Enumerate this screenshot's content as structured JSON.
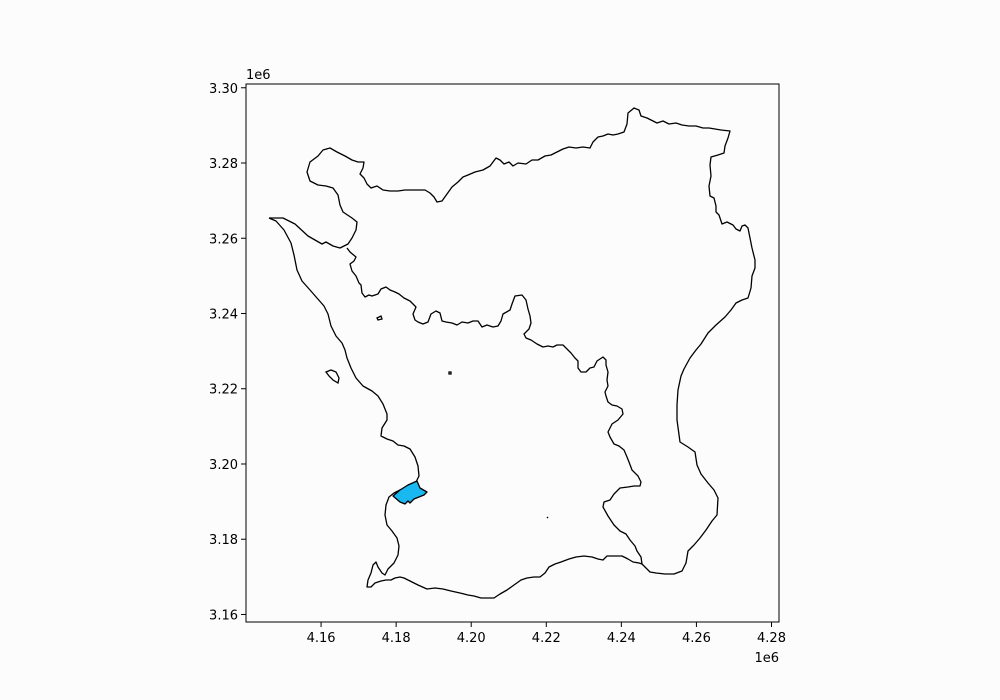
{
  "chart_data": {
    "type": "map",
    "title": "",
    "xlabel": "",
    "ylabel": "",
    "x_offset_label": "1e6",
    "y_offset_label": "1e6",
    "xlim": [
      4.14,
      4.282
    ],
    "ylim": [
      3.158,
      3.301
    ],
    "x_ticks": [
      "4.16",
      "4.18",
      "4.20",
      "4.22",
      "4.24",
      "4.26",
      "4.28"
    ],
    "y_ticks": [
      "3.16",
      "3.18",
      "3.20",
      "3.22",
      "3.24",
      "3.26",
      "3.28",
      "3.30"
    ],
    "grid": false,
    "layers": [
      {
        "name": "region-outline",
        "fill": "none",
        "stroke": "#000000"
      },
      {
        "name": "highlighted-area",
        "fill": "#1ab8f0",
        "stroke": "#000000"
      }
    ]
  }
}
